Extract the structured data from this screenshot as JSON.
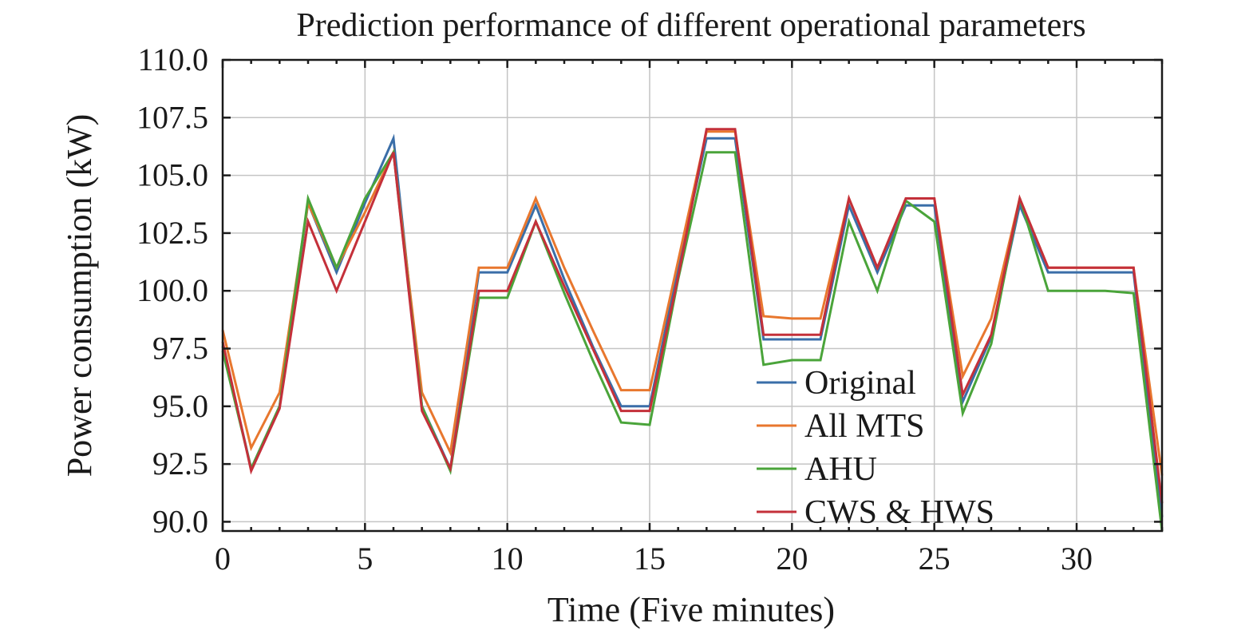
{
  "chart_data": {
    "type": "line",
    "title": "Prediction performance of different operational parameters",
    "xlabel": "Time (Five minutes)",
    "ylabel": "Power consumption (kW)",
    "xlim": [
      0,
      33
    ],
    "ylim": [
      89.6,
      110.0
    ],
    "x_ticks": [
      0,
      5,
      10,
      15,
      20,
      25,
      30
    ],
    "x_tick_labels": [
      "0",
      "5",
      "10",
      "15",
      "20",
      "25",
      "30"
    ],
    "y_ticks": [
      90.0,
      92.5,
      95.0,
      97.5,
      100.0,
      102.5,
      105.0,
      107.5,
      110.0
    ],
    "y_tick_labels": [
      "90.0",
      "92.5",
      "95.0",
      "97.5",
      "100.0",
      "102.5",
      "105.0",
      "107.5",
      "110.0"
    ],
    "grid": true,
    "legend_position": "bottom-right",
    "x": [
      0,
      1,
      2,
      3,
      4,
      5,
      6,
      7,
      8,
      9,
      10,
      11,
      12,
      13,
      14,
      15,
      16,
      17,
      18,
      19,
      20,
      21,
      22,
      23,
      24,
      25,
      26,
      27,
      28,
      29,
      30,
      31,
      32,
      33
    ],
    "series": [
      {
        "name": "Original",
        "color": "#3a6ea8",
        "values": [
          97.6,
          92.3,
          95.0,
          103.8,
          100.8,
          103.8,
          106.6,
          95.0,
          92.3,
          100.8,
          100.8,
          103.7,
          100.5,
          97.6,
          95.0,
          95.0,
          101.0,
          106.6,
          106.6,
          97.9,
          97.9,
          97.9,
          103.7,
          100.8,
          103.7,
          103.7,
          95.2,
          98.0,
          103.7,
          100.8,
          100.8,
          100.8,
          100.8,
          90.2
        ]
      },
      {
        "name": "All MTS",
        "color": "#e8772e",
        "values": [
          98.3,
          93.2,
          95.6,
          103.8,
          101.0,
          103.4,
          106.0,
          95.6,
          93.0,
          101.0,
          101.0,
          104.0,
          101.0,
          98.3,
          95.7,
          95.7,
          101.3,
          106.9,
          106.9,
          98.9,
          98.8,
          98.8,
          104.0,
          101.0,
          104.0,
          104.0,
          96.3,
          98.8,
          104.0,
          101.0,
          101.0,
          101.0,
          101.0,
          92.0
        ]
      },
      {
        "name": "AHU",
        "color": "#4aa43a",
        "values": [
          97.4,
          92.3,
          95.0,
          104.0,
          101.0,
          104.0,
          106.0,
          95.0,
          92.2,
          99.7,
          99.7,
          103.0,
          99.9,
          97.0,
          94.3,
          94.2,
          100.5,
          106.0,
          106.0,
          96.8,
          97.0,
          97.0,
          103.0,
          100.0,
          103.9,
          103.0,
          94.7,
          97.7,
          104.0,
          100.0,
          100.0,
          100.0,
          99.9,
          89.6
        ]
      },
      {
        "name": "CWS & HWS",
        "color": "#c4303a",
        "values": [
          97.8,
          92.2,
          94.9,
          103.0,
          100.0,
          103.0,
          106.0,
          94.8,
          92.3,
          100.0,
          100.0,
          103.0,
          100.2,
          97.5,
          94.8,
          94.8,
          100.6,
          107.0,
          107.0,
          98.1,
          98.1,
          98.1,
          104.0,
          101.0,
          104.0,
          104.0,
          95.5,
          98.1,
          104.0,
          101.0,
          101.0,
          101.0,
          101.0,
          90.8
        ]
      }
    ]
  }
}
